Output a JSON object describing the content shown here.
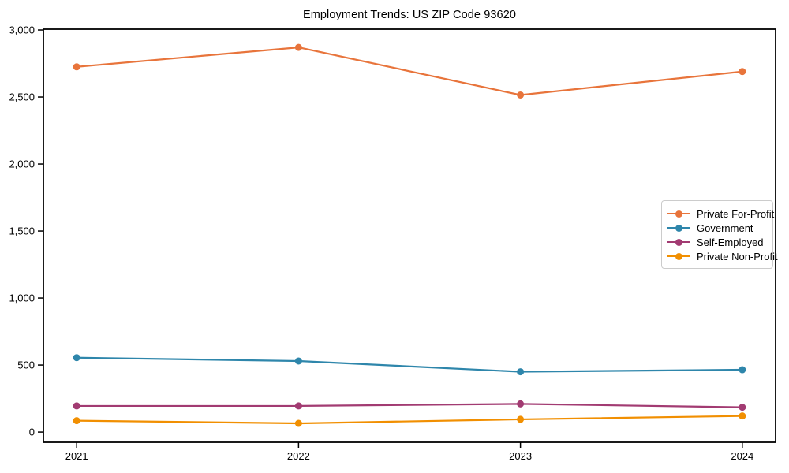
{
  "figure": {
    "background": "#ffffff",
    "text_color": "#000000",
    "spine_color": "#000000",
    "legend_border_color": "#cccccc"
  },
  "chart_data": {
    "type": "line",
    "title": "Employment Trends: US ZIP Code 93620",
    "xlabel": "",
    "ylabel": "",
    "grid": false,
    "legend_position": "center-right",
    "x": [
      2021,
      2022,
      2023,
      2024
    ],
    "x_tick_labels": [
      "2021",
      "2022",
      "2023",
      "2024"
    ],
    "y_ticks": [
      0,
      500,
      1000,
      1500,
      2000,
      2500,
      3000
    ],
    "y_tick_labels": [
      "0",
      "500",
      "1,000",
      "1,500",
      "2,000",
      "2,500",
      "3,000"
    ],
    "xlim": [
      2020.85,
      2024.15
    ],
    "ylim": [
      -76,
      3006
    ],
    "series": [
      {
        "name": "Private For-Profit",
        "color": "#E8743B",
        "values": [
          2725,
          2870,
          2515,
          2690
        ]
      },
      {
        "name": "Government",
        "color": "#2E86AB",
        "values": [
          555,
          530,
          450,
          465
        ]
      },
      {
        "name": "Self-Employed",
        "color": "#A23B72",
        "values": [
          195,
          195,
          210,
          185
        ]
      },
      {
        "name": "Private Non-Profit",
        "color": "#F18F01",
        "values": [
          85,
          65,
          95,
          120
        ]
      }
    ]
  }
}
